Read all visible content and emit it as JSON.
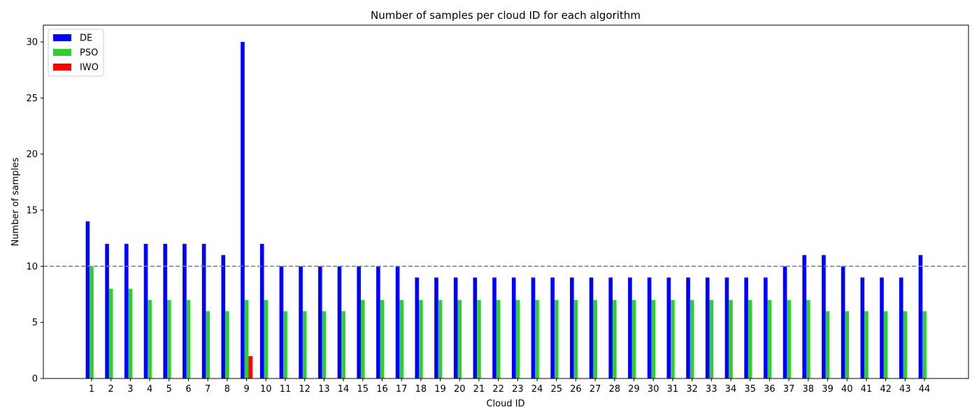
{
  "chart_data": {
    "type": "bar",
    "title": "Number of samples per cloud ID for each algorithm",
    "xlabel": "Cloud ID",
    "ylabel": "Number of samples",
    "categories": [
      "1",
      "2",
      "3",
      "4",
      "5",
      "6",
      "7",
      "8",
      "9",
      "10",
      "11",
      "12",
      "13",
      "14",
      "15",
      "16",
      "17",
      "18",
      "19",
      "20",
      "21",
      "22",
      "23",
      "24",
      "25",
      "26",
      "27",
      "28",
      "29",
      "30",
      "31",
      "32",
      "33",
      "34",
      "35",
      "36",
      "37",
      "38",
      "39",
      "40",
      "41",
      "42",
      "43",
      "44"
    ],
    "series": [
      {
        "name": "DE",
        "color": "#0000ff",
        "values": [
          14,
          12,
          12,
          12,
          12,
          12,
          12,
          11,
          30,
          12,
          10,
          10,
          10,
          10,
          10,
          10,
          10,
          9,
          9,
          9,
          9,
          9,
          9,
          9,
          9,
          9,
          9,
          9,
          9,
          9,
          9,
          9,
          9,
          9,
          9,
          9,
          10,
          11,
          11,
          10,
          9,
          9,
          9,
          11
        ]
      },
      {
        "name": "PSO",
        "color": "#33cc33",
        "values": [
          10,
          8,
          8,
          7,
          7,
          7,
          6,
          6,
          7,
          7,
          6,
          6,
          6,
          6,
          7,
          7,
          7,
          7,
          7,
          7,
          7,
          7,
          7,
          7,
          7,
          7,
          7,
          7,
          7,
          7,
          7,
          7,
          7,
          7,
          7,
          7,
          7,
          7,
          6,
          6,
          6,
          6,
          6,
          6
        ]
      },
      {
        "name": "IWO",
        "color": "#ff0000",
        "values": [
          0,
          0,
          0,
          0,
          0,
          0,
          0,
          0,
          2,
          0,
          0,
          0,
          0,
          0,
          0,
          0,
          0,
          0,
          0,
          0,
          0,
          0,
          0,
          0,
          0,
          0,
          0,
          0,
          0,
          0,
          0,
          0,
          0,
          0,
          0,
          0,
          0,
          0,
          0,
          0,
          0,
          0,
          0,
          0
        ]
      }
    ],
    "reference_line": {
      "y": 10,
      "style": "dashed",
      "color": "#808080"
    },
    "yticks": [
      0,
      5,
      10,
      15,
      20,
      25,
      30
    ],
    "ylim": [
      0,
      31.5
    ],
    "grid": false,
    "legend_position": "top-left"
  }
}
